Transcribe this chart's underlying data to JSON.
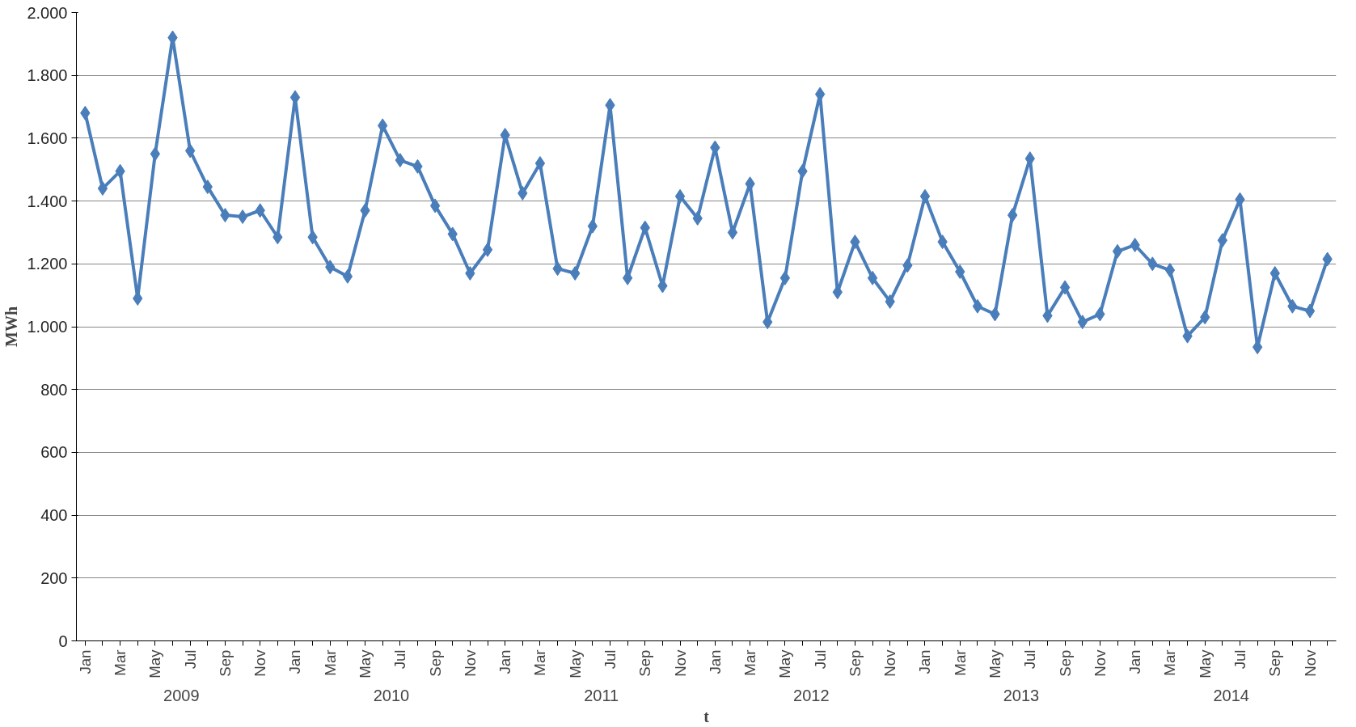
{
  "chart_data": {
    "type": "line",
    "xlabel": "t",
    "ylabel": "MWh",
    "categories": [
      "Jan",
      null,
      "Mar",
      null,
      "May",
      null,
      "Jul",
      null,
      "Sep",
      null,
      "Nov",
      null,
      "Jan",
      null,
      "Mar",
      null,
      "May",
      null,
      "Jul",
      null,
      "Sep",
      null,
      "Nov",
      null,
      "Jan",
      null,
      "Mar",
      null,
      "May",
      null,
      "Jul",
      null,
      "Sep",
      null,
      "Nov",
      null,
      "Jan",
      null,
      "Mar",
      null,
      "May",
      null,
      "Jul",
      null,
      "Sep",
      null,
      "Nov",
      null,
      "Jan",
      null,
      "Mar",
      null,
      "May",
      null,
      "Jul",
      null,
      "Sep",
      null,
      "Nov",
      null,
      "Jan",
      null,
      "Mar",
      null,
      "May",
      null,
      "Jul",
      null,
      "Sep",
      null,
      "Nov",
      null
    ],
    "series": [
      {
        "color": "#4a7ebb",
        "values": [
          1680,
          1440,
          1495,
          1090,
          1550,
          1920,
          1560,
          1445,
          1355,
          1350,
          1370,
          1285,
          1730,
          1285,
          1190,
          1160,
          1370,
          1640,
          1530,
          1510,
          1385,
          1295,
          1170,
          1245,
          1610,
          1425,
          1520,
          1185,
          1170,
          1320,
          1705,
          1155,
          1315,
          1130,
          1415,
          1345,
          1570,
          1300,
          1455,
          1015,
          1155,
          1495,
          1740,
          1110,
          1270,
          1155,
          1080,
          1195,
          1415,
          1270,
          1175,
          1065,
          1040,
          1355,
          1535,
          1035,
          1125,
          1015,
          1040,
          1240,
          1260,
          1200,
          1180,
          970,
          1030,
          1275,
          1405,
          935,
          1170,
          1065,
          1050,
          1215
        ]
      }
    ],
    "annotations": [
      "2009",
      "2010",
      "2011",
      "2012",
      "2013",
      "2014"
    ],
    "ylim": [
      0,
      2000
    ],
    "yticks": [
      0,
      200,
      400,
      600,
      800,
      {
        "value": 1000,
        "label": "1.000"
      },
      {
        "value": 1200,
        "label": "1.200"
      },
      {
        "value": 1400,
        "label": "1.400"
      },
      {
        "value": 1600,
        "label": "1.600"
      },
      {
        "value": 1800,
        "label": "1.800"
      },
      {
        "value": 2000,
        "label": "2.000"
      }
    ],
    "grid": "y",
    "marker": "diamond",
    "line_style": "solid"
  }
}
